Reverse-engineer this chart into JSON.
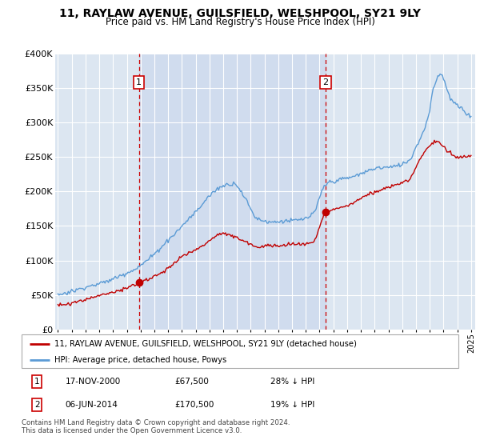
{
  "title": "11, RAYLAW AVENUE, GUILSFIELD, WELSHPOOL, SY21 9LY",
  "subtitle": "Price paid vs. HM Land Registry's House Price Index (HPI)",
  "legend_line1": "11, RAYLAW AVENUE, GUILSFIELD, WELSHPOOL, SY21 9LY (detached house)",
  "legend_line2": "HPI: Average price, detached house, Powys",
  "annotation1": {
    "label": "1",
    "date_str": "17-NOV-2000",
    "price_str": "£67,500",
    "pct_str": "28% ↓ HPI"
  },
  "annotation2": {
    "label": "2",
    "date_str": "06-JUN-2014",
    "price_str": "£170,500",
    "pct_str": "19% ↓ HPI"
  },
  "footnote": "Contains HM Land Registry data © Crown copyright and database right 2024.\nThis data is licensed under the Open Government Licence v3.0.",
  "ylim": [
    0,
    400000
  ],
  "yticks": [
    0,
    50000,
    100000,
    150000,
    200000,
    250000,
    300000,
    350000,
    400000
  ],
  "sale1_x": 2000.88,
  "sale1_y": 67500,
  "sale2_x": 2014.43,
  "sale2_y": 170500,
  "hpi_color": "#5b9bd5",
  "price_color": "#c00000",
  "shade_color": "#ccd9ed",
  "background_color": "#dce6f1",
  "xlim_left": 1994.8,
  "xlim_right": 2025.3
}
